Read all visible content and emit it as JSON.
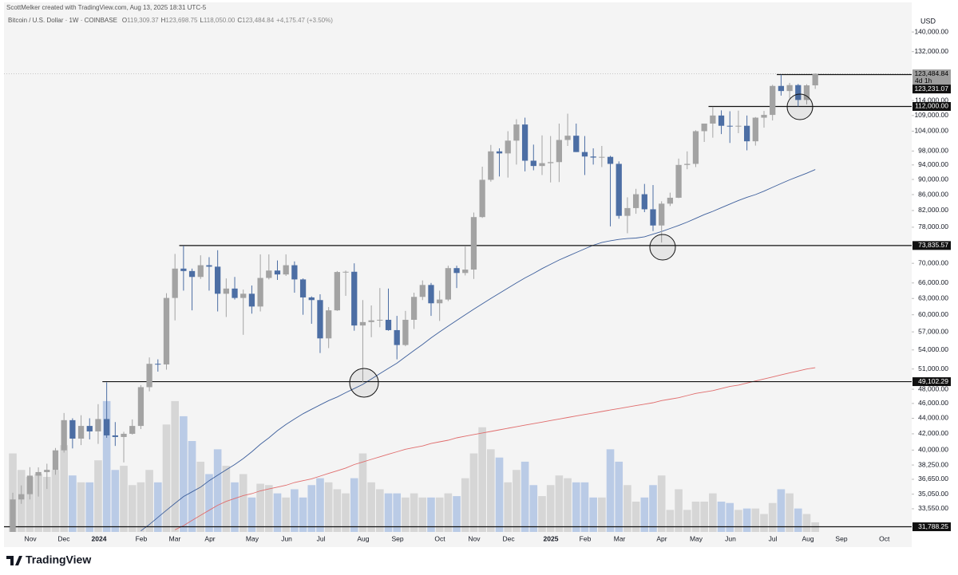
{
  "header": {
    "credit": "ScottMelker created with TradingView.com, Aug 13, 2025 18:31 UTC-5",
    "symbol": "Bitcoin / U.S. Dollar · 1W · COINBASE",
    "ohlc": [
      {
        "key": "O",
        "value": "119,309.37"
      },
      {
        "key": "H",
        "value": "123,698.75"
      },
      {
        "key": "L",
        "value": "118,050.00"
      },
      {
        "key": "C",
        "value": "123,484.84"
      }
    ],
    "change": "+4,175.47 (+3.50%)",
    "currency": "USD"
  },
  "footer": {
    "brand": "TradingView"
  },
  "chart_data": {
    "type": "candlestick",
    "log_scale": true,
    "up_color": "#a3a3a3",
    "down_color": "#4c6ea4",
    "up_volume_color": "#d6d6d6",
    "down_volume_color": "#bacbe6",
    "ylim": [
      31300,
      148300
    ],
    "xlim": [
      -1.03,
      105.3
    ],
    "volume_lim": [
      0,
      110
    ],
    "yticks": [
      {
        "value": 140000,
        "label": "140,000.00"
      },
      {
        "value": 132000,
        "label": "132,000.00"
      },
      {
        "value": 114000,
        "label": "114,000.00"
      },
      {
        "value": 109000,
        "label": "109,000.00"
      },
      {
        "value": 104000,
        "label": "104,000.00"
      },
      {
        "value": 98000,
        "label": "98,000.00"
      },
      {
        "value": 94000,
        "label": "94,000.00"
      },
      {
        "value": 90000,
        "label": "90,000.00"
      },
      {
        "value": 86000,
        "label": "86,000.00"
      },
      {
        "value": 82000,
        "label": "82,000.00"
      },
      {
        "value": 78000,
        "label": "78,000.00"
      },
      {
        "value": 70000,
        "label": "70,000.00"
      },
      {
        "value": 66000,
        "label": "66,000.00"
      },
      {
        "value": 63000,
        "label": "63,000.00"
      },
      {
        "value": 60000,
        "label": "60,000.00"
      },
      {
        "value": 57000,
        "label": "57,000.00"
      },
      {
        "value": 54000,
        "label": "54,000.00"
      },
      {
        "value": 51000,
        "label": "51,000.00"
      },
      {
        "value": 48000,
        "label": "48,000.00"
      },
      {
        "value": 46000,
        "label": "46,000.00"
      },
      {
        "value": 44000,
        "label": "44,000.00"
      },
      {
        "value": 42000,
        "label": "42,000.00"
      },
      {
        "value": 40000,
        "label": "40,000.00"
      },
      {
        "value": 38250,
        "label": "38,250.00"
      },
      {
        "value": 36650,
        "label": "36,650.00"
      },
      {
        "value": 35050,
        "label": "35,050.00"
      },
      {
        "value": 33550,
        "label": "33,550.00"
      }
    ],
    "xticks": [
      {
        "value": 2.06,
        "label": "Nov"
      },
      {
        "value": 5.98,
        "label": "Dec"
      },
      {
        "value": 10.1,
        "label": "2024"
      },
      {
        "value": 15.05,
        "label": "Feb"
      },
      {
        "value": 18.98,
        "label": "Mar"
      },
      {
        "value": 23.1,
        "label": "Apr"
      },
      {
        "value": 28.05,
        "label": "May"
      },
      {
        "value": 32.08,
        "label": "Jun"
      },
      {
        "value": 36.1,
        "label": "Jul"
      },
      {
        "value": 41.05,
        "label": "Aug"
      },
      {
        "value": 45.08,
        "label": "Sep"
      },
      {
        "value": 50.03,
        "label": "Oct"
      },
      {
        "value": 54.05,
        "label": "Nov"
      },
      {
        "value": 58.08,
        "label": "Dec"
      },
      {
        "value": 63.03,
        "label": "2025"
      },
      {
        "value": 67.05,
        "label": "Feb"
      },
      {
        "value": 71.08,
        "label": "Mar"
      },
      {
        "value": 76.03,
        "label": "Apr"
      },
      {
        "value": 80.05,
        "label": "May"
      },
      {
        "value": 84.07,
        "label": "Jun"
      },
      {
        "value": 89.03,
        "label": "Jul"
      },
      {
        "value": 93.15,
        "label": "Aug"
      },
      {
        "value": 97.07,
        "label": "Sep"
      },
      {
        "value": 102.1,
        "label": "Oct"
      }
    ],
    "ohlc": {
      "open": [
        29990,
        34500,
        35050,
        37050,
        37450,
        37700,
        39970,
        43750,
        41400,
        43000,
        42300,
        43900,
        41800,
        41600,
        42000,
        43000,
        48300,
        51800,
        51700,
        63100,
        68900,
        68400,
        67200,
        69600,
        69300,
        63900,
        64900,
        63100,
        63900,
        61500,
        67000,
        68500,
        67700,
        69600,
        66700,
        63200,
        62700,
        55900,
        60800,
        68200,
        68250,
        58100,
        58700,
        59000,
        59100,
        57300,
        54800,
        59100,
        63300,
        65600,
        62100,
        62800,
        69000,
        68000,
        68700,
        80400,
        89900,
        97900,
        97300,
        101100,
        106100,
        95200,
        93700,
        94500,
        94800,
        101300,
        102600,
        97700,
        96400,
        96100,
        96300,
        94300,
        80700,
        82600,
        86100,
        82300,
        78400,
        83700,
        85200,
        94000,
        94300,
        104000,
        106400,
        109000,
        105700,
        105600,
        105700,
        100900,
        108300,
        109200,
        119100,
        117300,
        119400,
        114200,
        119309.37
      ],
      "high": [
        35200,
        35980,
        38000,
        37980,
        38400,
        40250,
        44700,
        44000,
        44400,
        44000,
        45900,
        49000,
        43500,
        42250,
        43850,
        48600,
        52800,
        52500,
        64000,
        72000,
        73800,
        68900,
        71700,
        71300,
        72800,
        66900,
        67200,
        64700,
        65500,
        71900,
        71900,
        70600,
        71900,
        70400,
        66900,
        63400,
        63800,
        61400,
        68400,
        68500,
        70000,
        62700,
        61700,
        65000,
        64900,
        59800,
        60700,
        64100,
        66500,
        66000,
        64500,
        69500,
        69500,
        73600,
        81500,
        93500,
        99800,
        98800,
        104000,
        107800,
        108300,
        99900,
        102700,
        102500,
        106400,
        109600,
        106400,
        102500,
        98800,
        99500,
        96600,
        95000,
        85300,
        87500,
        88800,
        88500,
        84300,
        86500,
        95800,
        97900,
        104300,
        105800,
        111900,
        110700,
        110400,
        110600,
        109000,
        108500,
        110500,
        119500,
        123200,
        120200,
        119800,
        119700,
        123698.75
      ],
      "low": [
        29700,
        34050,
        34500,
        34800,
        35600,
        37150,
        39700,
        40200,
        40600,
        41300,
        40750,
        41500,
        40500,
        38550,
        41900,
        42600,
        47700,
        50600,
        50900,
        59000,
        64500,
        60800,
        66800,
        64500,
        60600,
        59600,
        62800,
        56500,
        60200,
        60600,
        66700,
        66600,
        67400,
        64100,
        60000,
        58400,
        53500,
        54300,
        60700,
        63500,
        57200,
        49000,
        56100,
        57800,
        57200,
        52500,
        54600,
        57500,
        62700,
        59800,
        58900,
        62500,
        65000,
        67500,
        66800,
        80200,
        89400,
        90800,
        90500,
        94100,
        92200,
        92500,
        91200,
        89200,
        89300,
        99500,
        97700,
        91200,
        94100,
        93400,
        78200,
        80000,
        76600,
        81200,
        81600,
        77100,
        74500,
        83100,
        85100,
        92800,
        93400,
        100700,
        102000,
        103100,
        100400,
        103400,
        98200,
        99600,
        105100,
        107400,
        115700,
        114700,
        112000,
        112700,
        118050
      ],
      "close": [
        34500,
        35050,
        37050,
        37450,
        37700,
        39970,
        43750,
        41400,
        43000,
        42300,
        43900,
        41800,
        41600,
        42000,
        43000,
        48300,
        51800,
        51700,
        63100,
        68900,
        68400,
        67200,
        69600,
        69300,
        63900,
        64900,
        63100,
        63900,
        61500,
        67000,
        68500,
        67700,
        69600,
        66700,
        63200,
        62700,
        55900,
        60800,
        68200,
        68250,
        58100,
        58700,
        59000,
        59100,
        57300,
        54800,
        59100,
        63300,
        65600,
        62100,
        62800,
        69000,
        68000,
        68700,
        80400,
        89900,
        97900,
        97300,
        101100,
        106100,
        95200,
        93700,
        94500,
        94800,
        101300,
        102600,
        97700,
        96400,
        96100,
        96300,
        94300,
        80700,
        82600,
        86100,
        82300,
        78400,
        83700,
        85200,
        94000,
        94300,
        104000,
        106400,
        109000,
        105700,
        105600,
        105700,
        100900,
        108300,
        109200,
        119100,
        117300,
        119400,
        114200,
        119309.37,
        123484.84
      ]
    },
    "volume": [
      57,
      45,
      40,
      42,
      40,
      45,
      63,
      41,
      36,
      36,
      52,
      95,
      45,
      48,
      34,
      36,
      45,
      36,
      78,
      95,
      84,
      66,
      51,
      42,
      60,
      48,
      36,
      42,
      25,
      35,
      34,
      28,
      25,
      31,
      25,
      34,
      39,
      36,
      31,
      28,
      39,
      57,
      36,
      31,
      28,
      28,
      25,
      28,
      25,
      25,
      25,
      28,
      26,
      39,
      57,
      76,
      60,
      54,
      36,
      45,
      51,
      34,
      26,
      34,
      41,
      39,
      36,
      36,
      25,
      25,
      60,
      51,
      34,
      22,
      25,
      34,
      41,
      16,
      31,
      16,
      22,
      22,
      28,
      22,
      21,
      16,
      17,
      17,
      13,
      21,
      31,
      28,
      17,
      13,
      7
    ],
    "series": [
      {
        "color": "#3d5f9c",
        "values": [
          null,
          null,
          null,
          null,
          null,
          null,
          null,
          null,
          null,
          null,
          null,
          null,
          null,
          null,
          null,
          31400,
          32000,
          32700,
          33400,
          34100,
          34800,
          35300,
          35800,
          36500,
          37100,
          37700,
          38300,
          39000,
          39800,
          40700,
          41500,
          42400,
          43200,
          43900,
          44600,
          45200,
          45800,
          46400,
          46900,
          47500,
          48100,
          48700,
          49500,
          50300,
          51100,
          51900,
          52900,
          53900,
          54900,
          56000,
          57000,
          58000,
          59000,
          60000,
          61000,
          62000,
          63000,
          64000,
          65000,
          66000,
          67000,
          67900,
          68900,
          69800,
          70700,
          71500,
          72300,
          73100,
          73900,
          74500,
          74900,
          75200,
          75400,
          75500,
          75800,
          76400,
          77000,
          77700,
          78400,
          79200,
          80100,
          81000,
          81800,
          82700,
          83600,
          84500,
          85300,
          86000,
          86900,
          87900,
          88900,
          89900,
          90800,
          91700,
          92700
        ]
      },
      {
        "color": "#e06c6c",
        "values": [
          null,
          null,
          null,
          null,
          null,
          null,
          null,
          null,
          null,
          null,
          null,
          null,
          null,
          null,
          null,
          null,
          null,
          null,
          null,
          31500,
          31900,
          32400,
          32900,
          33400,
          33900,
          34300,
          34600,
          34900,
          35100,
          35400,
          35600,
          35800,
          36000,
          36300,
          36500,
          36700,
          37000,
          37300,
          37600,
          37900,
          38300,
          38600,
          38900,
          39200,
          39500,
          39800,
          40100,
          40300,
          40500,
          40800,
          41000,
          41200,
          41500,
          41700,
          41900,
          42100,
          42300,
          42500,
          42700,
          42900,
          43100,
          43300,
          43500,
          43700,
          43900,
          44100,
          44300,
          44500,
          44700,
          44900,
          45100,
          45300,
          45500,
          45700,
          45900,
          46100,
          46400,
          46600,
          46800,
          47100,
          47400,
          47600,
          47800,
          48100,
          48400,
          48600,
          48900,
          49200,
          49500,
          49800,
          50100,
          50400,
          50700,
          51000,
          51200
        ]
      }
    ],
    "levels": [
      {
        "value": 123231.07,
        "label": "123,231.07",
        "start": 90
      },
      {
        "value": 112000,
        "label": "112,000.00",
        "start": 82
      },
      {
        "value": 73835.57,
        "label": "73,835.57",
        "start": 20
      },
      {
        "value": 49102.29,
        "label": "49,102.29",
        "start": 11
      },
      {
        "value": 31788.25,
        "label": "31,788.25"
      }
    ],
    "last_price": {
      "value": 123484.84,
      "label": "123,484.84",
      "countdown": "4d 1h"
    }
  }
}
